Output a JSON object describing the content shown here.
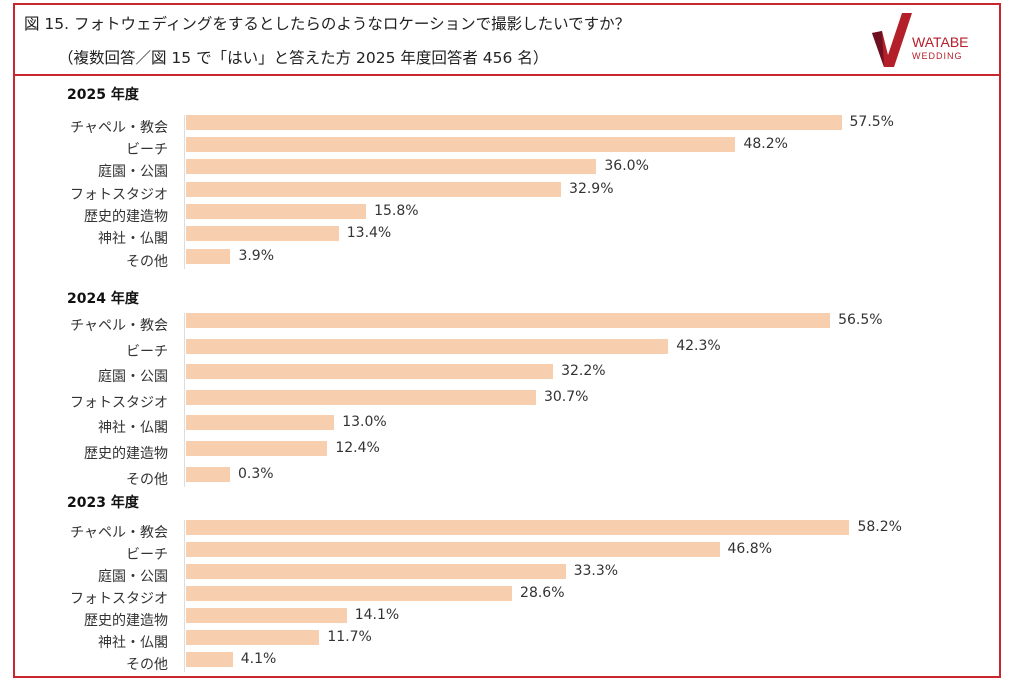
{
  "header": {
    "title": "図 15. フォトウェディングをするとしたらのようなロケーションで撮影したいですか？",
    "subtitle": "（複数回答／図 15 で「はい」と答えた方 2025 年度回答者 456 名）",
    "logo": {
      "line1": "WATABE",
      "line2": "WEDDING"
    }
  },
  "colors": {
    "bar": "#f8cfae",
    "border": "#c8282d",
    "logo": "#b3202a"
  },
  "chart_data": [
    {
      "type": "bar",
      "orientation": "horizontal",
      "title": "2025 年度",
      "categories": [
        "チャペル・教会",
        "ビーチ",
        "庭園・公園",
        "フォトスタジオ",
        "歴史的建造物",
        "神社・仏閣",
        "その他"
      ],
      "values": [
        57.5,
        48.2,
        36.0,
        32.9,
        15.8,
        13.4,
        3.9
      ],
      "labels": [
        "57.5%",
        "48.2%",
        "36.0%",
        "32.9%",
        "15.8%",
        "13.4%",
        "3.9%"
      ]
    },
    {
      "type": "bar",
      "orientation": "horizontal",
      "title": "2024 年度",
      "categories": [
        "チャペル・教会",
        "ビーチ",
        "庭園・公園",
        "フォトスタジオ",
        "神社・仏閣",
        "歴史的建造物",
        "その他"
      ],
      "values": [
        56.5,
        42.3,
        32.2,
        30.7,
        13.0,
        12.4,
        0.3
      ],
      "labels": [
        "56.5%",
        "42.3%",
        "32.2%",
        "30.7%",
        "13.0%",
        "12.4%",
        "0.3%"
      ]
    },
    {
      "type": "bar",
      "orientation": "horizontal",
      "title": "2023 年度",
      "categories": [
        "チャペル・教会",
        "ビーチ",
        "庭園・公園",
        "フォトスタジオ",
        "歴史的建造物",
        "神社・仏閣",
        "その他"
      ],
      "values": [
        58.2,
        46.8,
        33.3,
        28.6,
        14.1,
        11.7,
        4.1
      ],
      "labels": [
        "58.2%",
        "46.8%",
        "33.3%",
        "28.6%",
        "14.1%",
        "11.7%",
        "4.1%"
      ]
    }
  ]
}
